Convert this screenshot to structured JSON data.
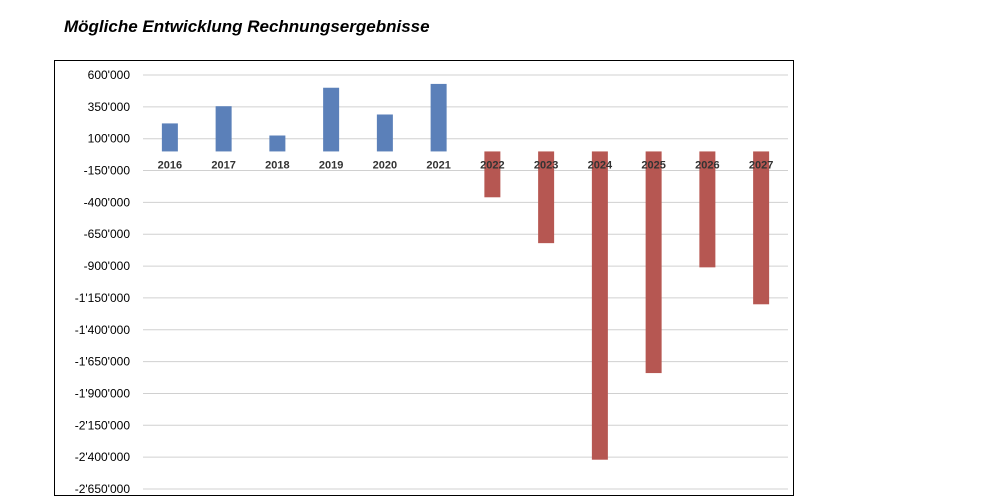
{
  "title": "Mögliche Entwicklung Rechnungsergebnisse",
  "chart_data": {
    "type": "bar",
    "title": "",
    "xlabel": "",
    "ylabel": "",
    "categories": [
      "2016",
      "2017",
      "2018",
      "2019",
      "2020",
      "2021",
      "2022",
      "2023",
      "2024",
      "2025",
      "2026",
      "2027"
    ],
    "values": [
      220000,
      355000,
      125000,
      500000,
      290000,
      530000,
      -360000,
      -720000,
      -2420000,
      -1740000,
      -910000,
      -1200000
    ],
    "ylim": [
      -2650000,
      600000
    ],
    "yticks": [
      600000,
      350000,
      100000,
      -150000,
      -400000,
      -650000,
      -900000,
      -1150000,
      -1400000,
      -1650000,
      -1900000,
      -2150000,
      -2400000,
      -2650000
    ],
    "ytick_labels": [
      "600'000",
      "350'000",
      "100'000",
      "-150'000",
      "-400'000",
      "-650'000",
      "-900'000",
      "-1'150'000",
      "-1'400'000",
      "-1'650'000",
      "-1'900'000",
      "-2'150'000",
      "-2'400'000",
      "-2'650'000"
    ],
    "grid": true,
    "legend": "none",
    "colors": {
      "positive": "#5b80b9",
      "negative": "#b65752",
      "grid": "#d0d0d0"
    }
  }
}
